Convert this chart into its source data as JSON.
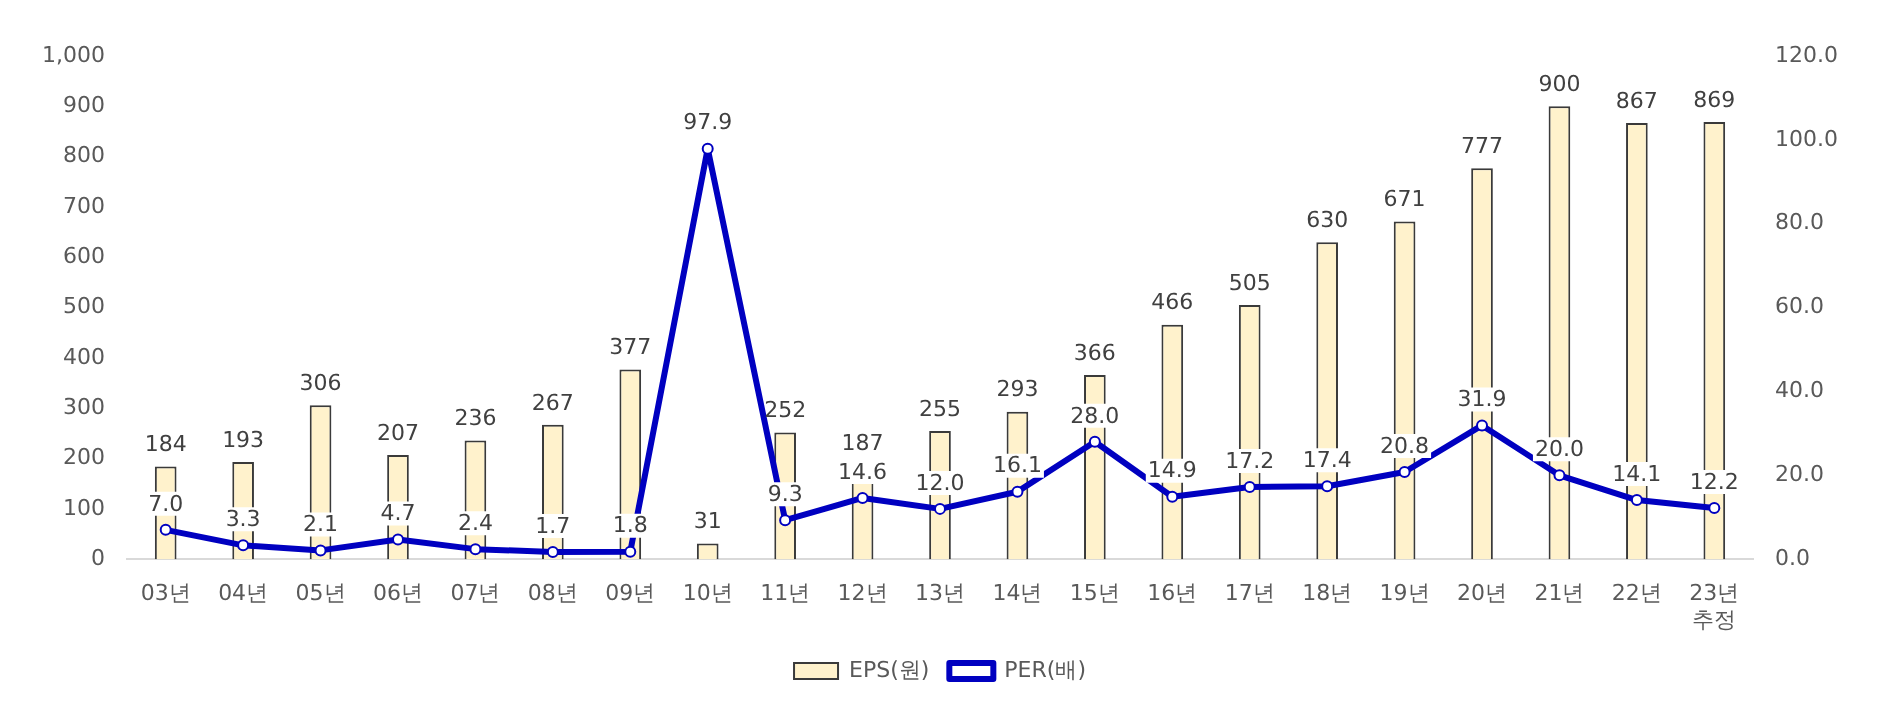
{
  "chart_data": {
    "type": "bar",
    "categories": [
      "03년",
      "04년",
      "05년",
      "06년",
      "07년",
      "08년",
      "09년",
      "10년",
      "11년",
      "12년",
      "13년",
      "14년",
      "15년",
      "16년",
      "17년",
      "18년",
      "19년",
      "20년",
      "21년",
      "22년",
      "23년\n추정"
    ],
    "series": [
      {
        "name": "EPS(원)",
        "color": "#fff2cc",
        "values": [
          184,
          193,
          306,
          207,
          236,
          267,
          377,
          31,
          252,
          187,
          255,
          293,
          366,
          466,
          505,
          630,
          671,
          777,
          900,
          867,
          869
        ]
      },
      {
        "name": "PER(배)",
        "type": "line",
        "axis": "y2",
        "color": "#0000c0",
        "values": [
          7.0,
          3.3,
          2.1,
          4.7,
          2.4,
          1.7,
          1.8,
          97.9,
          9.3,
          14.6,
          12.0,
          16.1,
          28.0,
          14.9,
          17.2,
          17.4,
          20.8,
          31.9,
          20.0,
          14.1,
          12.2
        ],
        "value_labels": [
          "7.0",
          "3.3",
          "2.1",
          "4.7",
          "2.4",
          "1.7",
          "1.8",
          "97.9",
          "9.3",
          "14.6",
          "12.0",
          "16.1",
          "28.0",
          "14.9",
          "17.2",
          "17.4",
          "20.8",
          "31.9",
          "20.0",
          "14.1",
          "12.2"
        ]
      }
    ],
    "ylim": [
      0,
      1000
    ],
    "yticks": [
      0,
      100,
      200,
      300,
      400,
      500,
      600,
      700,
      800,
      900,
      {
        "value": 1000,
        "label": "1,000"
      }
    ],
    "y2lim": [
      0,
      120
    ],
    "y2ticks": [
      {
        "value": 0,
        "label": "0.0"
      },
      {
        "value": 20,
        "label": "20.0"
      },
      {
        "value": 40,
        "label": "40.0"
      },
      {
        "value": 60,
        "label": "60.0"
      },
      {
        "value": 80,
        "label": "80.0"
      },
      {
        "value": 100,
        "label": "100.0"
      },
      {
        "value": 120,
        "label": "120.0"
      }
    ],
    "grid": false,
    "legend": "bottom",
    "marker": "circle",
    "data_labels": true
  }
}
